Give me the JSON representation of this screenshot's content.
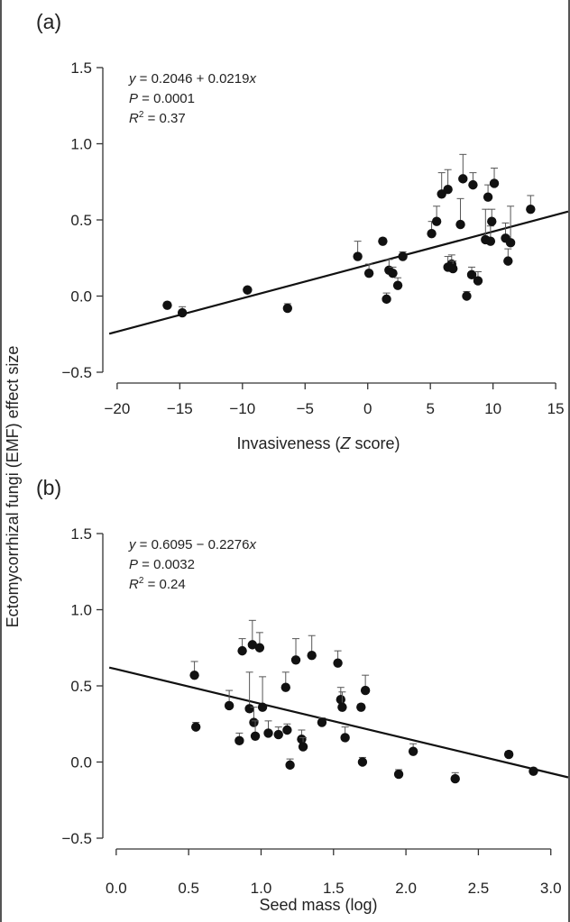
{
  "figure": {
    "ylabel": "Ectomycorrhizal fungi (EMF) effect size"
  },
  "colors": {
    "marker": "#111111",
    "line": "#111111",
    "axis": "#333333"
  },
  "chart_data": [
    {
      "type": "scatter",
      "panel_label": "(a)",
      "xlabel_main": "Invasiveness (",
      "xlabel_italic": "Z",
      "xlabel_end": " score)",
      "xlim": [
        -21,
        16
      ],
      "ylim": [
        -0.5,
        1.5
      ],
      "xticks": [
        -20,
        -15,
        -10,
        -5,
        0,
        5,
        10,
        15
      ],
      "xtick_labels": [
        "−20",
        "−15",
        "−10",
        "−5",
        "0",
        "5",
        "10",
        "15"
      ],
      "yticks": [
        -0.5,
        0.0,
        0.5,
        1.0,
        1.5
      ],
      "ytick_labels": [
        "−0.5",
        "0.0",
        "0.5",
        "1.0",
        "1.5"
      ],
      "regression": {
        "intercept": 0.2046,
        "slope": 0.0219
      },
      "annotations": {
        "eq_lhs": "y",
        "eq_rhs": " = 0.2046 + 0.0219",
        "eq_x": "x",
        "p_sym": "P",
        "p_val": " = 0.0001",
        "r2_sym": "R",
        "r2_sup": "2",
        "r2_val": " = 0.37"
      },
      "points": [
        {
          "x": -16.0,
          "y": -0.06,
          "err": 0.02
        },
        {
          "x": -14.8,
          "y": -0.11,
          "err": 0.04
        },
        {
          "x": -9.6,
          "y": 0.04,
          "err": 0.02
        },
        {
          "x": -6.4,
          "y": -0.08,
          "err": 0.03
        },
        {
          "x": -0.8,
          "y": 0.26,
          "err": 0.1
        },
        {
          "x": 0.1,
          "y": 0.15,
          "err": 0.06
        },
        {
          "x": 1.2,
          "y": 0.36,
          "err": 0.02
        },
        {
          "x": 1.5,
          "y": -0.02,
          "err": 0.04
        },
        {
          "x": 1.7,
          "y": 0.17,
          "err": 0.07
        },
        {
          "x": 2.0,
          "y": 0.15,
          "err": 0.04
        },
        {
          "x": 2.4,
          "y": 0.07,
          "err": 0.05
        },
        {
          "x": 2.8,
          "y": 0.26,
          "err": 0.03
        },
        {
          "x": 5.1,
          "y": 0.41,
          "err": 0.08
        },
        {
          "x": 5.5,
          "y": 0.49,
          "err": 0.1
        },
        {
          "x": 5.9,
          "y": 0.67,
          "err": 0.14
        },
        {
          "x": 6.4,
          "y": 0.7,
          "err": 0.13
        },
        {
          "x": 6.4,
          "y": 0.19,
          "err": 0.07
        },
        {
          "x": 6.7,
          "y": 0.21,
          "err": 0.06
        },
        {
          "x": 6.8,
          "y": 0.18,
          "err": 0.05
        },
        {
          "x": 7.4,
          "y": 0.47,
          "err": 0.17
        },
        {
          "x": 7.6,
          "y": 0.77,
          "err": 0.16
        },
        {
          "x": 7.9,
          "y": 0.0,
          "err": 0.03
        },
        {
          "x": 8.3,
          "y": 0.14,
          "err": 0.05
        },
        {
          "x": 8.4,
          "y": 0.73,
          "err": 0.08
        },
        {
          "x": 8.8,
          "y": 0.1,
          "err": 0.06
        },
        {
          "x": 9.4,
          "y": 0.37,
          "err": 0.2
        },
        {
          "x": 9.6,
          "y": 0.65,
          "err": 0.08
        },
        {
          "x": 9.8,
          "y": 0.36,
          "err": 0.1
        },
        {
          "x": 9.9,
          "y": 0.49,
          "err": 0.08
        },
        {
          "x": 10.1,
          "y": 0.74,
          "err": 0.1
        },
        {
          "x": 11.0,
          "y": 0.38,
          "err": 0.1
        },
        {
          "x": 11.2,
          "y": 0.23,
          "err": 0.08
        },
        {
          "x": 11.4,
          "y": 0.35,
          "err": 0.24
        },
        {
          "x": 13.0,
          "y": 0.57,
          "err": 0.09
        }
      ]
    },
    {
      "type": "scatter",
      "panel_label": "(b)",
      "xlabel_main": "Seed mass (log)",
      "xlabel_italic": "",
      "xlabel_end": "",
      "xlim": [
        -0.08,
        3.12
      ],
      "ylim": [
        -0.5,
        1.5
      ],
      "xticks": [
        0.0,
        0.5,
        1.0,
        1.5,
        2.0,
        2.5,
        3.0
      ],
      "xtick_labels": [
        "0.0",
        "0.5",
        "1.0",
        "1.5",
        "2.0",
        "2.5",
        "3.0"
      ],
      "yticks": [
        -0.5,
        0.0,
        0.5,
        1.0,
        1.5
      ],
      "ytick_labels": [
        "−0.5",
        "0.0",
        "0.5",
        "1.0",
        "1.5"
      ],
      "regression": {
        "intercept": 0.6095,
        "slope": -0.2276
      },
      "annotations": {
        "eq_lhs": "y",
        "eq_rhs": " = 0.6095 − 0.2276",
        "eq_x": "x",
        "p_sym": "P",
        "p_val": " = 0.0032",
        "r2_sym": "R",
        "r2_sup": "2",
        "r2_val": " = 0.24"
      },
      "points": [
        {
          "x": 0.54,
          "y": 0.57,
          "err": 0.09
        },
        {
          "x": 0.55,
          "y": 0.23,
          "err": 0.03
        },
        {
          "x": 0.78,
          "y": 0.37,
          "err": 0.1
        },
        {
          "x": 0.85,
          "y": 0.14,
          "err": 0.05
        },
        {
          "x": 0.87,
          "y": 0.73,
          "err": 0.08
        },
        {
          "x": 0.92,
          "y": 0.35,
          "err": 0.24
        },
        {
          "x": 0.94,
          "y": 0.77,
          "err": 0.16
        },
        {
          "x": 0.95,
          "y": 0.26,
          "err": 0.1
        },
        {
          "x": 0.96,
          "y": 0.17,
          "err": 0.1
        },
        {
          "x": 0.99,
          "y": 0.75,
          "err": 0.1
        },
        {
          "x": 1.01,
          "y": 0.36,
          "err": 0.2
        },
        {
          "x": 1.05,
          "y": 0.19,
          "err": 0.08
        },
        {
          "x": 1.12,
          "y": 0.18,
          "err": 0.05
        },
        {
          "x": 1.17,
          "y": 0.49,
          "err": 0.1
        },
        {
          "x": 1.18,
          "y": 0.21,
          "err": 0.04
        },
        {
          "x": 1.2,
          "y": -0.02,
          "err": 0.04
        },
        {
          "x": 1.24,
          "y": 0.67,
          "err": 0.14
        },
        {
          "x": 1.28,
          "y": 0.15,
          "err": 0.06
        },
        {
          "x": 1.29,
          "y": 0.1,
          "err": 0.06
        },
        {
          "x": 1.35,
          "y": 0.7,
          "err": 0.13
        },
        {
          "x": 1.42,
          "y": 0.26,
          "err": 0.03
        },
        {
          "x": 1.53,
          "y": 0.65,
          "err": 0.08
        },
        {
          "x": 1.55,
          "y": 0.41,
          "err": 0.08
        },
        {
          "x": 1.56,
          "y": 0.36,
          "err": 0.1
        },
        {
          "x": 1.58,
          "y": 0.16,
          "err": 0.07
        },
        {
          "x": 1.69,
          "y": 0.36,
          "err": 0.02
        },
        {
          "x": 1.7,
          "y": 0.0,
          "err": 0.03
        },
        {
          "x": 1.72,
          "y": 0.47,
          "err": 0.1
        },
        {
          "x": 1.95,
          "y": -0.08,
          "err": 0.03
        },
        {
          "x": 2.05,
          "y": 0.07,
          "err": 0.05
        },
        {
          "x": 2.34,
          "y": -0.11,
          "err": 0.04
        },
        {
          "x": 2.71,
          "y": 0.05,
          "err": 0.02
        },
        {
          "x": 2.88,
          "y": -0.06,
          "err": 0.02
        }
      ]
    }
  ]
}
